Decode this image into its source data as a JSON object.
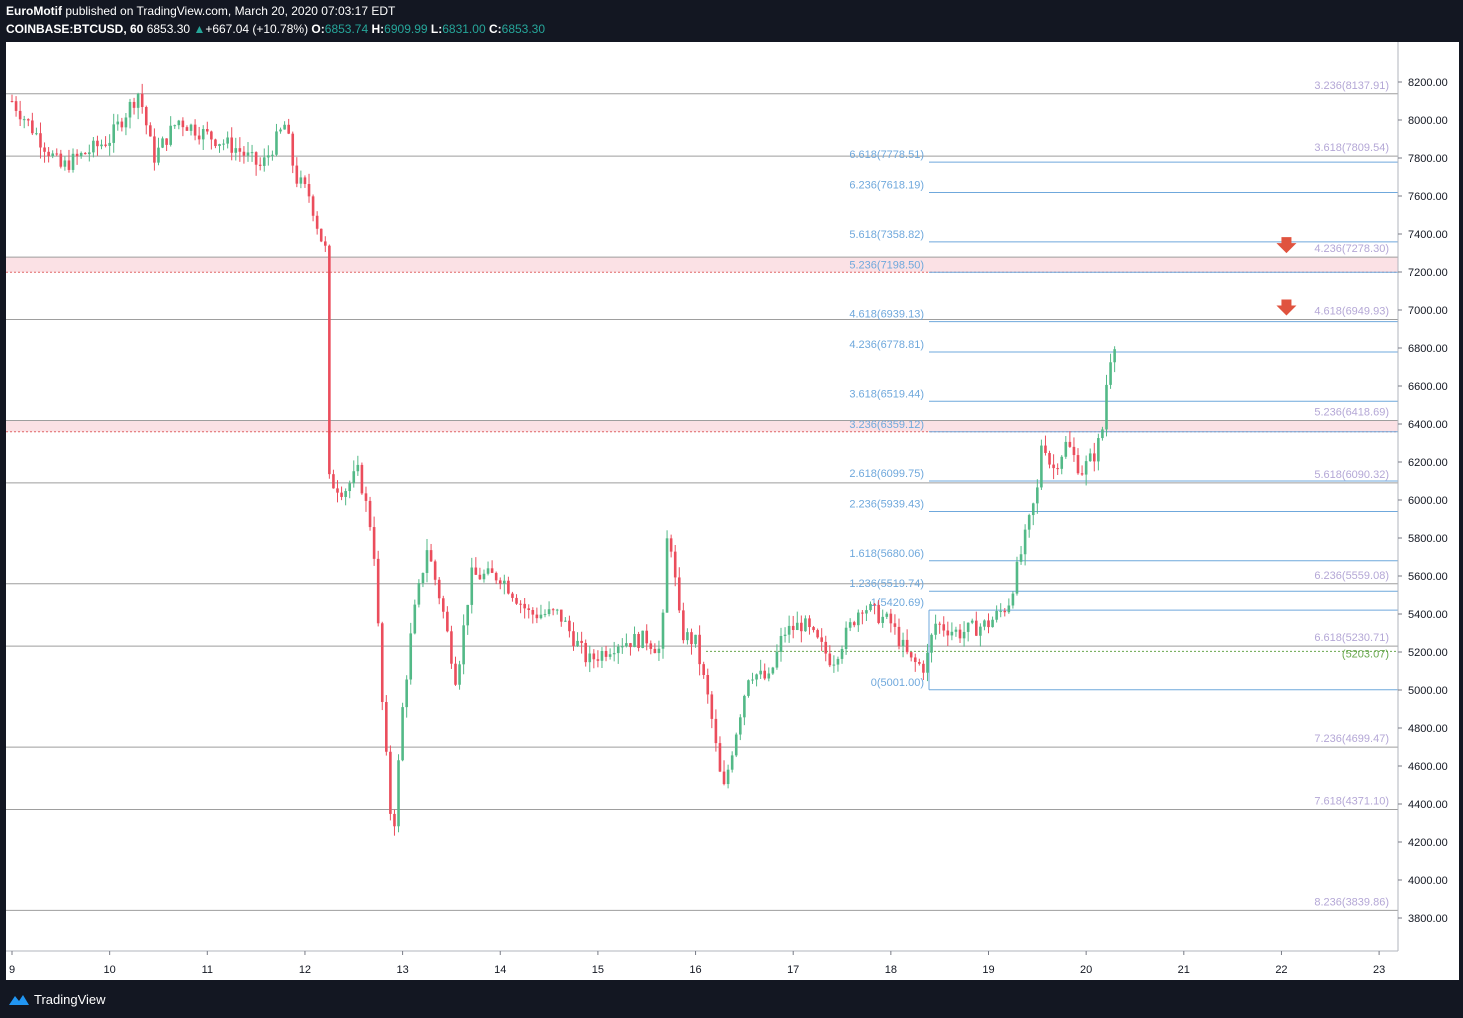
{
  "header": {
    "author": "EuroMotif",
    "published_text": "published on TradingView.com, March 20, 2020 07:03:17 EDT",
    "symbol": "COINBASE:BTCUSD, 60",
    "last": "6853.30",
    "change": "+667.04 (+10.78%)",
    "o_label": "O:",
    "o_value": "6853.74",
    "h_label": "H:",
    "h_value": "6909.99",
    "l_label": "L:",
    "l_value": "6831.00",
    "c_label": "C:",
    "c_value": "6853.30"
  },
  "footer": {
    "brand": "TradingView"
  },
  "colors": {
    "bg": "#ffffff",
    "up": "#53b987",
    "down": "#eb4d5c",
    "fib_blue": "#6fa8dc",
    "fib_purple": "#b4a7d6",
    "fib_green": "#6aa84f",
    "zone_fill": "#fbe1e5",
    "zone_line": "#e06666",
    "arrow": "#e0533f",
    "line_gray": "#9e9e9e"
  },
  "chart_data": {
    "type": "candlestick",
    "symbol": "COINBASE:BTCUSD",
    "interval": "60",
    "x_ticks": [
      "9",
      "10",
      "11",
      "12",
      "13",
      "14",
      "15",
      "16",
      "17",
      "18",
      "19",
      "20",
      "21",
      "22",
      "23"
    ],
    "ylim": [
      3650,
      8340
    ],
    "y_ticks": [
      "8200.00",
      "8000.00",
      "7800.00",
      "7600.00",
      "7400.00",
      "7200.00",
      "7000.00",
      "6800.00",
      "6600.00",
      "6400.00",
      "6200.00",
      "6000.00",
      "5800.00",
      "5600.00",
      "5400.00",
      "5200.00",
      "5000.00",
      "4800.00",
      "4600.00",
      "4400.00",
      "4200.00",
      "4000.00",
      "3800.00"
    ],
    "anchor_points": [
      {
        "day": 9.0,
        "price": 8100
      },
      {
        "day": 9.5,
        "price": 7750
      },
      {
        "day": 10.0,
        "price": 7900
      },
      {
        "day": 10.3,
        "price": 8150
      },
      {
        "day": 10.45,
        "price": 7800
      },
      {
        "day": 10.7,
        "price": 8000
      },
      {
        "day": 11.0,
        "price": 7920
      },
      {
        "day": 11.3,
        "price": 7850
      },
      {
        "day": 11.55,
        "price": 7750
      },
      {
        "day": 11.8,
        "price": 7980
      },
      {
        "day": 11.9,
        "price": 7700
      },
      {
        "day": 12.05,
        "price": 7600
      },
      {
        "day": 12.15,
        "price": 7400
      },
      {
        "day": 12.22,
        "price": 7300
      },
      {
        "day": 12.25,
        "price": 6100
      },
      {
        "day": 12.4,
        "price": 6050
      },
      {
        "day": 12.55,
        "price": 6150
      },
      {
        "day": 12.7,
        "price": 5800
      },
      {
        "day": 12.8,
        "price": 4850
      },
      {
        "day": 12.9,
        "price": 4200
      },
      {
        "day": 13.0,
        "price": 4900
      },
      {
        "day": 13.1,
        "price": 5350
      },
      {
        "day": 13.25,
        "price": 5750
      },
      {
        "day": 13.4,
        "price": 5450
      },
      {
        "day": 13.55,
        "price": 5050
      },
      {
        "day": 13.7,
        "price": 5600
      },
      {
        "day": 14.0,
        "price": 5600
      },
      {
        "day": 14.3,
        "price": 5400
      },
      {
        "day": 14.6,
        "price": 5400
      },
      {
        "day": 14.9,
        "price": 5150
      },
      {
        "day": 15.2,
        "price": 5250
      },
      {
        "day": 15.5,
        "price": 5270
      },
      {
        "day": 15.65,
        "price": 5200
      },
      {
        "day": 15.72,
        "price": 5900
      },
      {
        "day": 15.85,
        "price": 5300
      },
      {
        "day": 16.0,
        "price": 5250
      },
      {
        "day": 16.15,
        "price": 4900
      },
      {
        "day": 16.28,
        "price": 4450
      },
      {
        "day": 16.4,
        "price": 4750
      },
      {
        "day": 16.55,
        "price": 5100
      },
      {
        "day": 16.75,
        "price": 5050
      },
      {
        "day": 16.9,
        "price": 5300
      },
      {
        "day": 17.1,
        "price": 5350
      },
      {
        "day": 17.4,
        "price": 5150
      },
      {
        "day": 17.7,
        "price": 5450
      },
      {
        "day": 18.0,
        "price": 5350
      },
      {
        "day": 18.2,
        "price": 5150
      },
      {
        "day": 18.35,
        "price": 5120
      },
      {
        "day": 18.45,
        "price": 5350
      },
      {
        "day": 18.7,
        "price": 5300
      },
      {
        "day": 19.0,
        "price": 5350
      },
      {
        "day": 19.2,
        "price": 5450
      },
      {
        "day": 19.3,
        "price": 5650
      },
      {
        "day": 19.4,
        "price": 5850
      },
      {
        "day": 19.5,
        "price": 6050
      },
      {
        "day": 19.55,
        "price": 6350
      },
      {
        "day": 19.65,
        "price": 6150
      },
      {
        "day": 19.8,
        "price": 6300
      },
      {
        "day": 19.95,
        "price": 6150
      },
      {
        "day": 20.1,
        "price": 6250
      },
      {
        "day": 20.18,
        "price": 6400
      },
      {
        "day": 20.22,
        "price": 6700
      },
      {
        "day": 20.3,
        "price": 6853
      }
    ],
    "horizontal_levels": [
      {
        "price": 8137.91,
        "label": "3.236(8137.91)"
      },
      {
        "price": 7809.54,
        "label": "3.618(7809.54)"
      },
      {
        "price": 7278.3,
        "label": "4.236(7278.30)"
      },
      {
        "price": 6949.93,
        "label": "4.618(6949.93)"
      },
      {
        "price": 6418.69,
        "label": "5.236(6418.69)"
      },
      {
        "price": 6090.32,
        "label": "5.618(6090.32)"
      },
      {
        "price": 5559.08,
        "label": "6.236(5559.08)"
      },
      {
        "price": 5230.71,
        "label": "6.618(5230.71)"
      },
      {
        "price": 4699.47,
        "label": "7.236(4699.47)"
      },
      {
        "price": 4371.1,
        "label": "7.618(4371.10)"
      },
      {
        "price": 3839.86,
        "label": "8.236(3839.86)"
      }
    ],
    "fib_levels": [
      {
        "price": 7778.51,
        "label": "6.618(7778.51)"
      },
      {
        "price": 7618.19,
        "label": "6.236(7618.19)"
      },
      {
        "price": 7358.82,
        "label": "5.618(7358.82)"
      },
      {
        "price": 7198.5,
        "label": "5.236(7198.50)"
      },
      {
        "price": 6939.13,
        "label": "4.618(6939.13)"
      },
      {
        "price": 6778.81,
        "label": "4.236(6778.81)"
      },
      {
        "price": 6519.44,
        "label": "3.618(6519.44)"
      },
      {
        "price": 6359.12,
        "label": "3.236(6359.12)"
      },
      {
        "price": 6099.75,
        "label": "2.618(6099.75)"
      },
      {
        "price": 5939.43,
        "label": "2.236(5939.43)"
      },
      {
        "price": 5680.06,
        "label": "1.618(5680.06)"
      },
      {
        "price": 5519.74,
        "label": "1.236(5519.74)"
      },
      {
        "price": 5420.69,
        "label": "1(5420.69)"
      },
      {
        "price": 5001.0,
        "label": "0(5001.00)"
      }
    ],
    "green_level": {
      "price": 5203.07,
      "label": "(5203.07)"
    },
    "zones": [
      {
        "top": 7278.3,
        "bottom": 7198.5
      },
      {
        "top": 6418.69,
        "bottom": 6359.12
      }
    ],
    "arrows": [
      {
        "day": 22.0,
        "price": 7278.3
      },
      {
        "day": 22.0,
        "price": 6949.93
      }
    ]
  }
}
